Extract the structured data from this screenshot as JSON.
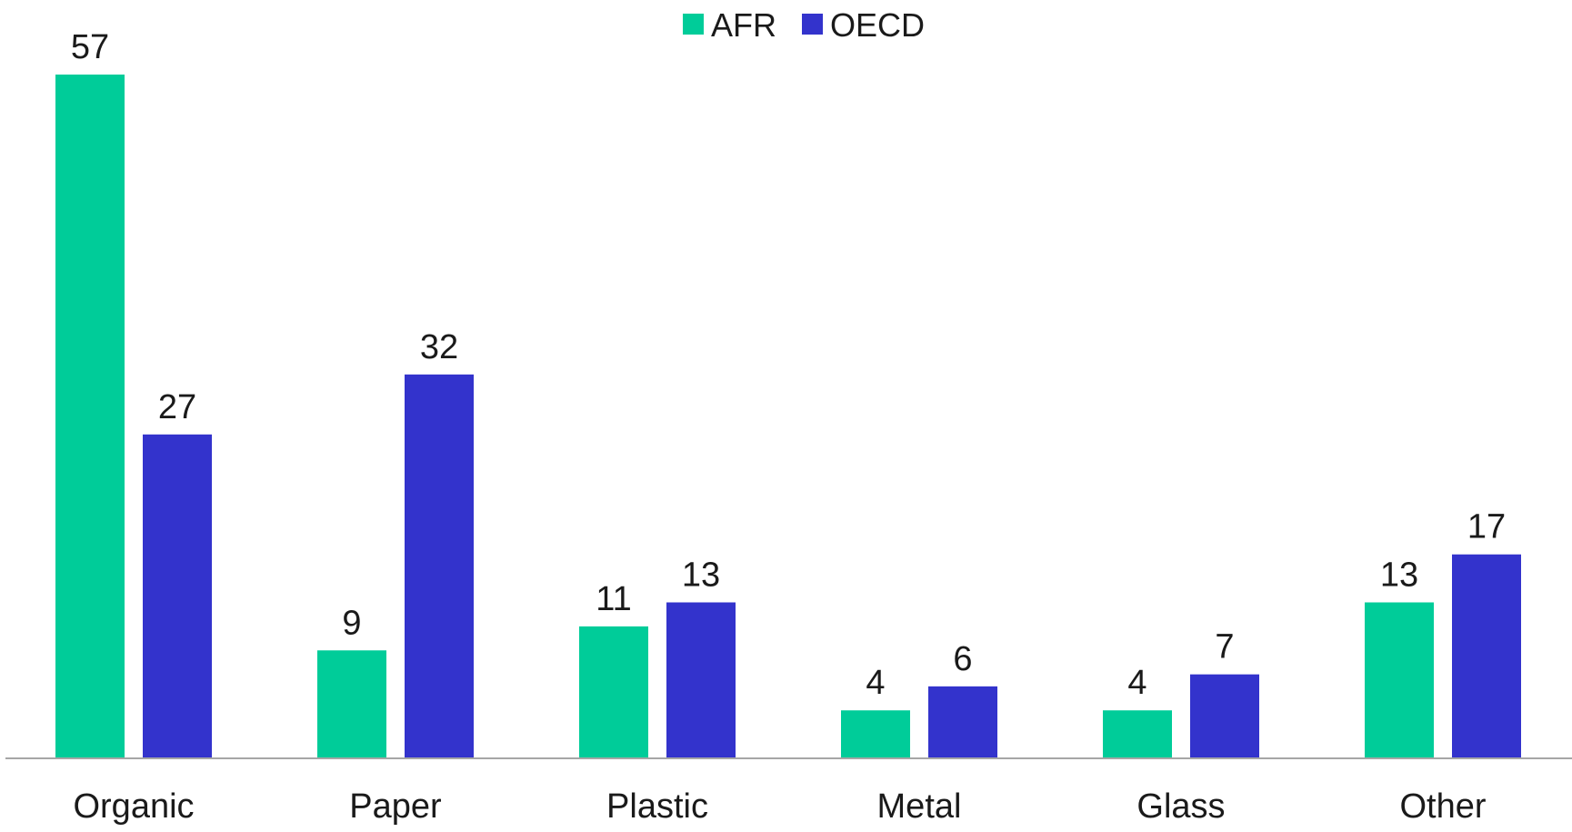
{
  "chart_data": {
    "type": "bar",
    "categories": [
      "Organic",
      "Paper",
      "Plastic",
      "Metal",
      "Glass",
      "Other"
    ],
    "series": [
      {
        "name": "AFR",
        "color": "#00cc99",
        "values": [
          57,
          9,
          11,
          4,
          4,
          13
        ]
      },
      {
        "name": "OECD",
        "color": "#3333cc",
        "values": [
          27,
          32,
          13,
          6,
          7,
          17
        ]
      }
    ],
    "title": "",
    "xlabel": "",
    "ylabel": "",
    "ylim": [
      0,
      57
    ],
    "grid": false,
    "legend_position": "top-center",
    "data_labels": true
  }
}
